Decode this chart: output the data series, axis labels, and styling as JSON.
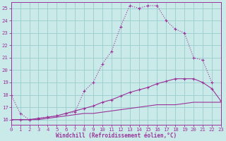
{
  "xlabel": "Windchill (Refroidissement éolien,°C)",
  "bg_color": "#caeaea",
  "line_color": "#993399",
  "grid_color": "#99cccc",
  "xlim": [
    0,
    23
  ],
  "ylim": [
    15.6,
    25.5
  ],
  "yticks": [
    16,
    17,
    18,
    19,
    20,
    21,
    22,
    23,
    24,
    25
  ],
  "xticks": [
    0,
    1,
    2,
    3,
    4,
    5,
    6,
    7,
    8,
    9,
    10,
    11,
    12,
    13,
    14,
    15,
    16,
    17,
    18,
    19,
    20,
    21,
    22,
    23
  ],
  "s1_x": [
    0,
    1,
    2,
    3,
    4,
    5,
    6,
    7,
    8,
    9,
    10,
    11,
    12,
    13,
    14,
    15,
    16,
    17,
    18,
    19,
    20,
    21,
    22,
    23
  ],
  "s1_y": [
    18.0,
    16.5,
    16.0,
    16.1,
    16.2,
    16.3,
    16.5,
    16.6,
    18.3,
    19.0,
    20.5,
    21.5,
    23.5,
    25.2,
    25.0,
    25.2,
    25.2,
    24.0,
    23.3,
    23.0,
    21.0,
    20.8,
    19.0,
    null
  ],
  "s2_x": [
    0,
    1,
    2,
    3,
    4,
    5,
    6,
    7,
    8,
    9,
    10,
    11,
    12,
    13,
    14,
    15,
    16,
    17,
    18,
    19,
    20,
    21,
    22,
    23
  ],
  "s2_y": [
    16.0,
    16.0,
    16.0,
    16.1,
    16.2,
    16.3,
    16.5,
    16.7,
    16.9,
    17.1,
    17.4,
    17.6,
    17.9,
    18.2,
    18.4,
    18.6,
    18.9,
    19.1,
    19.3,
    19.3,
    19.3,
    19.0,
    18.5,
    17.5
  ],
  "s3_x": [
    0,
    1,
    2,
    3,
    4,
    5,
    6,
    7,
    8,
    9,
    10,
    11,
    12,
    13,
    14,
    15,
    16,
    17,
    18,
    19,
    20,
    21,
    22,
    23
  ],
  "s3_y": [
    16.0,
    16.0,
    16.0,
    16.0,
    16.1,
    16.2,
    16.3,
    16.4,
    16.5,
    16.5,
    16.6,
    16.7,
    16.8,
    16.9,
    17.0,
    17.1,
    17.2,
    17.2,
    17.2,
    17.3,
    17.4,
    17.4,
    17.4,
    17.4
  ],
  "tick_fs": 5.2,
  "xlabel_fs": 5.5
}
